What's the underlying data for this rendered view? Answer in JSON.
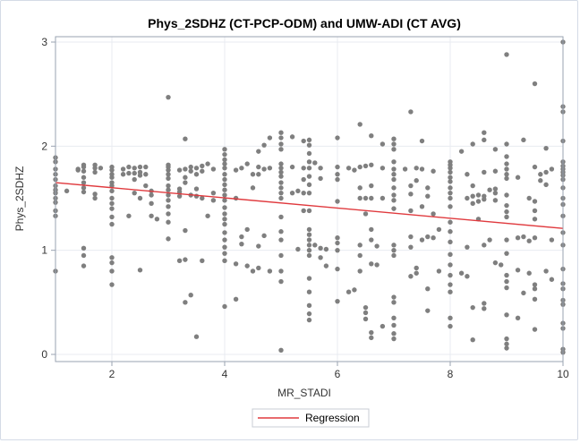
{
  "chart_data": {
    "type": "scatter",
    "title": "Phys_2SDHZ (CT-PCP-ODM) and UMW-ADI (CT AVG)",
    "xlabel": "MR_STADI",
    "ylabel": "Phys_2SDHZ",
    "xlim": [
      1,
      10
    ],
    "ylim": [
      0,
      3.05
    ],
    "x_ticks": [
      2,
      4,
      6,
      8,
      10
    ],
    "y_ticks": [
      0,
      1,
      2,
      3
    ],
    "grid": true,
    "legend": {
      "placement": "bottom-center",
      "entries": [
        "Regression"
      ]
    },
    "colors": {
      "points": "#7f7f7f",
      "regression": "#e03a3e",
      "grid": "#e8ebf1",
      "axis": "#9aa3b2"
    },
    "regression": {
      "name": "Regression",
      "x": [
        1,
        10
      ],
      "y": [
        1.65,
        1.21
      ]
    },
    "points": [
      [
        1,
        1.89
      ],
      [
        1,
        1.85
      ],
      [
        1,
        1.78
      ],
      [
        1,
        1.73
      ],
      [
        1,
        1.68
      ],
      [
        1,
        1.62
      ],
      [
        1,
        1.58
      ],
      [
        1,
        1.55
      ],
      [
        1,
        1.5
      ],
      [
        1,
        1.46
      ],
      [
        1,
        1.38
      ],
      [
        1,
        1.33
      ],
      [
        1,
        0.8
      ],
      [
        1.2,
        1.57
      ],
      [
        1.4,
        1.78
      ],
      [
        1.4,
        1.77
      ],
      [
        1.5,
        1.82
      ],
      [
        1.5,
        1.8
      ],
      [
        1.5,
        1.76
      ],
      [
        1.5,
        1.7
      ],
      [
        1.5,
        1.65
      ],
      [
        1.5,
        1.6
      ],
      [
        1.5,
        1.56
      ],
      [
        1.5,
        1.02
      ],
      [
        1.5,
        0.95
      ],
      [
        1.5,
        0.85
      ],
      [
        1.7,
        1.82
      ],
      [
        1.7,
        1.79
      ],
      [
        1.7,
        1.75
      ],
      [
        1.7,
        1.54
      ],
      [
        1.7,
        1.5
      ],
      [
        1.8,
        1.79
      ],
      [
        2,
        1.8
      ],
      [
        2,
        1.77
      ],
      [
        2,
        1.73
      ],
      [
        2,
        1.7
      ],
      [
        2,
        1.65
      ],
      [
        2,
        1.62
      ],
      [
        2,
        1.57
      ],
      [
        2,
        1.5
      ],
      [
        2,
        1.45
      ],
      [
        2,
        1.4
      ],
      [
        2,
        1.32
      ],
      [
        2,
        1.25
      ],
      [
        2,
        0.93
      ],
      [
        2,
        0.88
      ],
      [
        2,
        0.8
      ],
      [
        2,
        0.67
      ],
      [
        2.2,
        1.78
      ],
      [
        2.2,
        1.73
      ],
      [
        2.3,
        1.8
      ],
      [
        2.3,
        1.74
      ],
      [
        2.3,
        1.33
      ],
      [
        2.4,
        1.79
      ],
      [
        2.4,
        1.74
      ],
      [
        2.4,
        1.68
      ],
      [
        2.4,
        1.55
      ],
      [
        2.5,
        1.8
      ],
      [
        2.5,
        1.75
      ],
      [
        2.5,
        1.72
      ],
      [
        2.5,
        1.5
      ],
      [
        2.5,
        0.81
      ],
      [
        2.6,
        1.8
      ],
      [
        2.6,
        1.73
      ],
      [
        2.6,
        1.62
      ],
      [
        2.7,
        1.57
      ],
      [
        2.7,
        1.53
      ],
      [
        2.7,
        1.45
      ],
      [
        2.7,
        1.33
      ],
      [
        2.8,
        1.3
      ],
      [
        3,
        2.47
      ],
      [
        3,
        1.82
      ],
      [
        3,
        1.8
      ],
      [
        3,
        1.77
      ],
      [
        3,
        1.73
      ],
      [
        3,
        1.69
      ],
      [
        3,
        1.62
      ],
      [
        3,
        1.58
      ],
      [
        3,
        1.53
      ],
      [
        3,
        1.48
      ],
      [
        3,
        1.42
      ],
      [
        3,
        1.35
      ],
      [
        3,
        1.27
      ],
      [
        3,
        1.11
      ],
      [
        3.2,
        1.77
      ],
      [
        3.2,
        1.59
      ],
      [
        3.2,
        1.56
      ],
      [
        3.2,
        1.52
      ],
      [
        3.2,
        0.9
      ],
      [
        3.3,
        2.07
      ],
      [
        3.3,
        1.78
      ],
      [
        3.3,
        1.7
      ],
      [
        3.3,
        1.65
      ],
      [
        3.3,
        1.19
      ],
      [
        3.3,
        0.91
      ],
      [
        3.3,
        0.5
      ],
      [
        3.4,
        1.8
      ],
      [
        3.4,
        1.76
      ],
      [
        3.4,
        1.53
      ],
      [
        3.4,
        0.57
      ],
      [
        3.5,
        1.79
      ],
      [
        3.5,
        1.73
      ],
      [
        3.5,
        1.59
      ],
      [
        3.5,
        1.52
      ],
      [
        3.5,
        0.17
      ],
      [
        3.6,
        1.81
      ],
      [
        3.6,
        1.76
      ],
      [
        3.6,
        1.5
      ],
      [
        3.6,
        0.9
      ],
      [
        3.7,
        1.83
      ],
      [
        3.7,
        1.33
      ],
      [
        3.8,
        1.78
      ],
      [
        3.8,
        1.55
      ],
      [
        3.8,
        1.48
      ],
      [
        4,
        1.97
      ],
      [
        4,
        1.92
      ],
      [
        4,
        1.87
      ],
      [
        4,
        1.83
      ],
      [
        4,
        1.79
      ],
      [
        4,
        1.73
      ],
      [
        4,
        1.68
      ],
      [
        4,
        1.63
      ],
      [
        4,
        1.58
      ],
      [
        4,
        1.53
      ],
      [
        4,
        1.48
      ],
      [
        4,
        1.41
      ],
      [
        4,
        1.35
      ],
      [
        4,
        1.3
      ],
      [
        4,
        1.25
      ],
      [
        4,
        1.17
      ],
      [
        4,
        1.1
      ],
      [
        4,
        1.03
      ],
      [
        4,
        0.97
      ],
      [
        4,
        0.9
      ],
      [
        4,
        0.46
      ],
      [
        4.2,
        1.77
      ],
      [
        4.2,
        1.5
      ],
      [
        4.2,
        0.87
      ],
      [
        4.2,
        0.53
      ],
      [
        4.3,
        1.79
      ],
      [
        4.3,
        1.13
      ],
      [
        4.3,
        1.06
      ],
      [
        4.4,
        1.83
      ],
      [
        4.4,
        1.2
      ],
      [
        4.4,
        0.85
      ],
      [
        4.5,
        1.73
      ],
      [
        4.5,
        1.6
      ],
      [
        4.5,
        0.8
      ],
      [
        4.6,
        1.95
      ],
      [
        4.6,
        1.8
      ],
      [
        4.6,
        1.73
      ],
      [
        4.6,
        1.04
      ],
      [
        4.6,
        0.83
      ],
      [
        4.7,
        2.01
      ],
      [
        4.7,
        1.78
      ],
      [
        4.7,
        1.14
      ],
      [
        4.8,
        2.08
      ],
      [
        4.8,
        1.79
      ],
      [
        4.8,
        0.8
      ],
      [
        5,
        2.13
      ],
      [
        5,
        2.08
      ],
      [
        5,
        2.02
      ],
      [
        5,
        1.97
      ],
      [
        5,
        1.83
      ],
      [
        5,
        1.79
      ],
      [
        5,
        1.75
      ],
      [
        5,
        1.71
      ],
      [
        5,
        1.65
      ],
      [
        5,
        1.6
      ],
      [
        5,
        1.55
      ],
      [
        5,
        1.5
      ],
      [
        5,
        1.32
      ],
      [
        5,
        1.18
      ],
      [
        5,
        1.1
      ],
      [
        5,
        0.95
      ],
      [
        5,
        0.8
      ],
      [
        5,
        0.7
      ],
      [
        5,
        0.04
      ],
      [
        5.2,
        2.09
      ],
      [
        5.2,
        1.8
      ],
      [
        5.2,
        1.55
      ],
      [
        5.3,
        1.57
      ],
      [
        5.3,
        1.01
      ],
      [
        5.4,
        2.05
      ],
      [
        5.4,
        1.79
      ],
      [
        5.4,
        1.68
      ],
      [
        5.4,
        1.55
      ],
      [
        5.4,
        1.38
      ],
      [
        5.5,
        2.06
      ],
      [
        5.5,
        2.01
      ],
      [
        5.5,
        1.93
      ],
      [
        5.5,
        1.85
      ],
      [
        5.5,
        1.79
      ],
      [
        5.5,
        1.71
      ],
      [
        5.5,
        1.63
      ],
      [
        5.5,
        1.55
      ],
      [
        5.5,
        1.38
      ],
      [
        5.5,
        1.2
      ],
      [
        5.5,
        1.15
      ],
      [
        5.5,
        1.1
      ],
      [
        5.5,
        1.05
      ],
      [
        5.5,
        1.0
      ],
      [
        5.5,
        0.95
      ],
      [
        5.5,
        0.73
      ],
      [
        5.5,
        0.6
      ],
      [
        5.5,
        0.47
      ],
      [
        5.5,
        0.39
      ],
      [
        5.5,
        0.33
      ],
      [
        5.6,
        1.84
      ],
      [
        5.6,
        1.05
      ],
      [
        5.7,
        1.79
      ],
      [
        5.7,
        1.69
      ],
      [
        5.7,
        1.02
      ],
      [
        5.7,
        0.93
      ],
      [
        5.8,
        1.01
      ],
      [
        5.8,
        0.85
      ],
      [
        6,
        2.08
      ],
      [
        6,
        1.8
      ],
      [
        6,
        1.73
      ],
      [
        6,
        1.68
      ],
      [
        6,
        1.47
      ],
      [
        6,
        1.12
      ],
      [
        6,
        1.07
      ],
      [
        6,
        1.0
      ],
      [
        6,
        0.82
      ],
      [
        6,
        0.51
      ],
      [
        6.2,
        1.79
      ],
      [
        6.2,
        0.6
      ],
      [
        6.3,
        1.77
      ],
      [
        6.3,
        0.62
      ],
      [
        6.4,
        2.21
      ],
      [
        6.4,
        1.8
      ],
      [
        6.4,
        1.6
      ],
      [
        6.4,
        1.5
      ],
      [
        6.4,
        1.05
      ],
      [
        6.4,
        0.95
      ],
      [
        6.4,
        0.8
      ],
      [
        6.5,
        1.81
      ],
      [
        6.5,
        1.5
      ],
      [
        6.5,
        1.35
      ],
      [
        6.5,
        0.45
      ],
      [
        6.5,
        0.4
      ],
      [
        6.5,
        0.34
      ],
      [
        6.6,
        2.1
      ],
      [
        6.6,
        1.82
      ],
      [
        6.6,
        1.62
      ],
      [
        6.6,
        1.5
      ],
      [
        6.6,
        1.2
      ],
      [
        6.6,
        1.1
      ],
      [
        6.6,
        0.87
      ],
      [
        6.6,
        0.21
      ],
      [
        6.6,
        0.16
      ],
      [
        6.7,
        1.04
      ],
      [
        6.7,
        0.86
      ],
      [
        6.8,
        2.02
      ],
      [
        6.8,
        1.79
      ],
      [
        6.8,
        1.5
      ],
      [
        6.8,
        0.27
      ],
      [
        7,
        2.07
      ],
      [
        7,
        2.02
      ],
      [
        7,
        1.97
      ],
      [
        7,
        1.85
      ],
      [
        7,
        1.78
      ],
      [
        7,
        1.73
      ],
      [
        7,
        1.68
      ],
      [
        7,
        1.6
      ],
      [
        7,
        1.53
      ],
      [
        7,
        1.48
      ],
      [
        7,
        1.4
      ],
      [
        7,
        1.05
      ],
      [
        7,
        1.0
      ],
      [
        7,
        0.95
      ],
      [
        7,
        0.55
      ],
      [
        7,
        0.5
      ],
      [
        7,
        0.35
      ],
      [
        7,
        0.28
      ],
      [
        7,
        0.2
      ],
      [
        7,
        0.15
      ],
      [
        7.2,
        1.78
      ],
      [
        7.3,
        2.33
      ],
      [
        7.3,
        1.62
      ],
      [
        7.3,
        1.54
      ],
      [
        7.3,
        1.38
      ],
      [
        7.3,
        1.13
      ],
      [
        7.3,
        1.03
      ],
      [
        7.3,
        0.75
      ],
      [
        7.4,
        1.79
      ],
      [
        7.4,
        1.67
      ],
      [
        7.4,
        0.83
      ],
      [
        7.4,
        0.78
      ],
      [
        7.5,
        2.05
      ],
      [
        7.5,
        1.78
      ],
      [
        7.5,
        1.42
      ],
      [
        7.5,
        1.1
      ],
      [
        7.6,
        1.6
      ],
      [
        7.6,
        1.52
      ],
      [
        7.6,
        1.13
      ],
      [
        7.6,
        0.63
      ],
      [
        7.6,
        0.42
      ],
      [
        7.7,
        1.76
      ],
      [
        7.7,
        1.35
      ],
      [
        7.7,
        1.12
      ],
      [
        7.8,
        1.2
      ],
      [
        7.8,
        0.8
      ],
      [
        8,
        1.85
      ],
      [
        8,
        1.82
      ],
      [
        8,
        1.79
      ],
      [
        8,
        1.75
      ],
      [
        8,
        1.7
      ],
      [
        8,
        1.66
      ],
      [
        8,
        1.6
      ],
      [
        8,
        1.55
      ],
      [
        8,
        1.5
      ],
      [
        8,
        1.42
      ],
      [
        8,
        1.27
      ],
      [
        8,
        1.18
      ],
      [
        8,
        1.08
      ],
      [
        8,
        0.96
      ],
      [
        8,
        0.86
      ],
      [
        8,
        0.76
      ],
      [
        8,
        0.67
      ],
      [
        8,
        0.6
      ],
      [
        8,
        0.35
      ],
      [
        8,
        0.27
      ],
      [
        8.2,
        1.95
      ],
      [
        8.2,
        0.78
      ],
      [
        8.3,
        1.73
      ],
      [
        8.3,
        1.5
      ],
      [
        8.3,
        1.03
      ],
      [
        8.3,
        0.75
      ],
      [
        8.4,
        2.02
      ],
      [
        8.4,
        1.62
      ],
      [
        8.4,
        1.52
      ],
      [
        8.4,
        1.45
      ],
      [
        8.4,
        0.45
      ],
      [
        8.4,
        0.14
      ],
      [
        8.5,
        1.53
      ],
      [
        8.5,
        1.47
      ],
      [
        8.5,
        1.3
      ],
      [
        8.6,
        2.13
      ],
      [
        8.6,
        2.06
      ],
      [
        8.6,
        1.75
      ],
      [
        8.6,
        1.52
      ],
      [
        8.6,
        1.49
      ],
      [
        8.6,
        1.05
      ],
      [
        8.6,
        0.49
      ],
      [
        8.6,
        0.44
      ],
      [
        8.7,
        1.58
      ],
      [
        8.7,
        1.1
      ],
      [
        8.8,
        1.97
      ],
      [
        8.8,
        1.76
      ],
      [
        8.8,
        1.59
      ],
      [
        8.8,
        1.55
      ],
      [
        8.8,
        1.48
      ],
      [
        8.8,
        0.88
      ],
      [
        8.9,
        0.86
      ],
      [
        9,
        2.88
      ],
      [
        9,
        2.02
      ],
      [
        9,
        1.9
      ],
      [
        9,
        1.83
      ],
      [
        9,
        1.78
      ],
      [
        9,
        1.73
      ],
      [
        9,
        1.69
      ],
      [
        9,
        1.53
      ],
      [
        9,
        1.43
      ],
      [
        9,
        1.37
      ],
      [
        9,
        1.32
      ],
      [
        9,
        1.1
      ],
      [
        9,
        0.97
      ],
      [
        9,
        0.76
      ],
      [
        9,
        0.7
      ],
      [
        9,
        0.64
      ],
      [
        9,
        0.38
      ],
      [
        9,
        0.15
      ],
      [
        9,
        0.1
      ],
      [
        9,
        0.06
      ],
      [
        9.2,
        1.7
      ],
      [
        9.2,
        1.12
      ],
      [
        9.2,
        0.81
      ],
      [
        9.2,
        0.35
      ],
      [
        9.3,
        2.06
      ],
      [
        9.3,
        1.13
      ],
      [
        9.3,
        0.59
      ],
      [
        9.4,
        1.5
      ],
      [
        9.4,
        1.09
      ],
      [
        9.4,
        0.78
      ],
      [
        9.5,
        2.6
      ],
      [
        9.5,
        1.8
      ],
      [
        9.5,
        1.47
      ],
      [
        9.5,
        1.38
      ],
      [
        9.5,
        1.3
      ],
      [
        9.5,
        1.12
      ],
      [
        9.5,
        0.67
      ],
      [
        9.5,
        0.63
      ],
      [
        9.5,
        0.53
      ],
      [
        9.5,
        0.24
      ],
      [
        9.6,
        1.73
      ],
      [
        9.6,
        1.67
      ],
      [
        9.7,
        1.98
      ],
      [
        9.7,
        1.75
      ],
      [
        9.7,
        1.63
      ],
      [
        9.7,
        0.8
      ],
      [
        9.8,
        1.78
      ],
      [
        9.8,
        1.1
      ],
      [
        9.8,
        0.72
      ],
      [
        10,
        3.0
      ],
      [
        10,
        2.38
      ],
      [
        10,
        2.33
      ],
      [
        10,
        2.05
      ],
      [
        10,
        1.85
      ],
      [
        10,
        1.81
      ],
      [
        10,
        1.78
      ],
      [
        10,
        1.75
      ],
      [
        10,
        1.72
      ],
      [
        10,
        1.68
      ],
      [
        10,
        1.6
      ],
      [
        10,
        1.5
      ],
      [
        10,
        1.44
      ],
      [
        10,
        1.33
      ],
      [
        10,
        1.17
      ],
      [
        10,
        1.05
      ],
      [
        10,
        0.82
      ],
      [
        10,
        0.68
      ],
      [
        10,
        0.63
      ],
      [
        10,
        0.52
      ],
      [
        10,
        0.48
      ],
      [
        10,
        0.3
      ],
      [
        10,
        0.25
      ],
      [
        10,
        0.05
      ],
      [
        10,
        0.02
      ]
    ]
  }
}
